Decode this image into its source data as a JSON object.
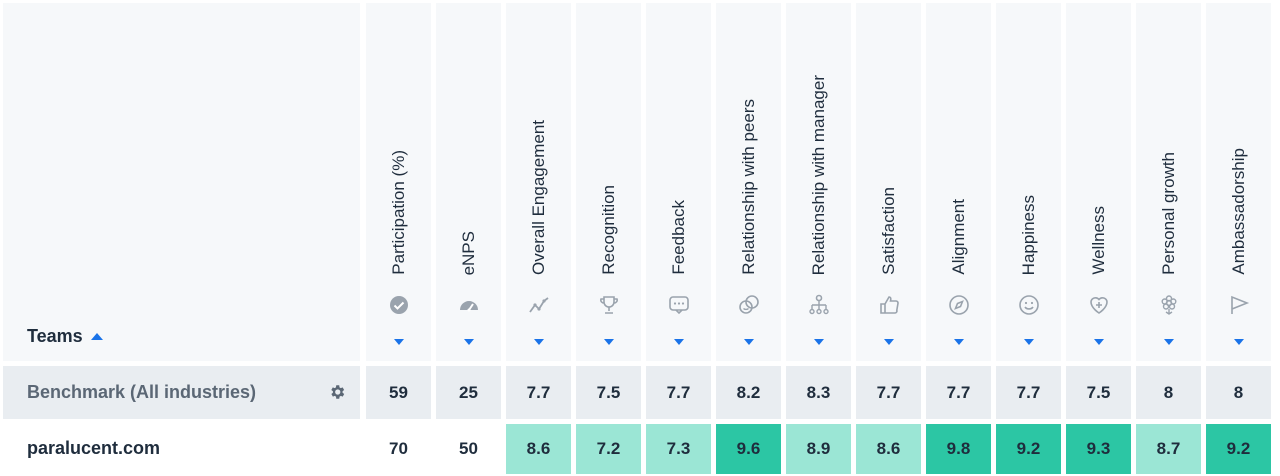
{
  "teams_header": {
    "label": "Teams"
  },
  "columns": [
    {
      "label": "Participation (%)",
      "icon": "check-badge-icon"
    },
    {
      "label": "eNPS",
      "icon": "speedometer-icon"
    },
    {
      "label": "Overall Engagement",
      "icon": "line-graph-icon"
    },
    {
      "label": "Recognition",
      "icon": "trophy-icon"
    },
    {
      "label": "Feedback",
      "icon": "chat-bubble-icon"
    },
    {
      "label": "Relationship with peers",
      "icon": "faces-icon"
    },
    {
      "label": "Relationship with manager",
      "icon": "org-chart-icon"
    },
    {
      "label": "Satisfaction",
      "icon": "thumbs-up-icon"
    },
    {
      "label": "Alignment",
      "icon": "compass-icon"
    },
    {
      "label": "Happiness",
      "icon": "smiley-icon"
    },
    {
      "label": "Wellness",
      "icon": "heart-plus-icon"
    },
    {
      "label": "Personal growth",
      "icon": "flower-icon"
    },
    {
      "label": "Ambassadorship",
      "icon": "flag-icon"
    }
  ],
  "benchmark": {
    "label": "Benchmark (All industries)",
    "values": [
      "59",
      "25",
      "7.7",
      "7.5",
      "7.7",
      "8.2",
      "8.3",
      "7.7",
      "7.7",
      "7.7",
      "7.5",
      "8",
      "8"
    ]
  },
  "team_row": {
    "label": "paralucent.com",
    "values": [
      "70",
      "50",
      "8.6",
      "7.2",
      "7.3",
      "9.6",
      "8.9",
      "8.6",
      "9.8",
      "9.2",
      "9.3",
      "8.7",
      "9.2"
    ],
    "highlight": [
      "none",
      "none",
      "light",
      "light",
      "light",
      "dark",
      "light",
      "light",
      "dark",
      "dark",
      "dark",
      "light",
      "dark"
    ]
  },
  "colors": {
    "header_bg": "#f6f8fa",
    "benchmark_bg": "#e9edf1",
    "highlight_light": "#9be6d5",
    "highlight_dark": "#2cc6a4",
    "accent": "#1a73e8",
    "icon": "#9aa3ad"
  }
}
